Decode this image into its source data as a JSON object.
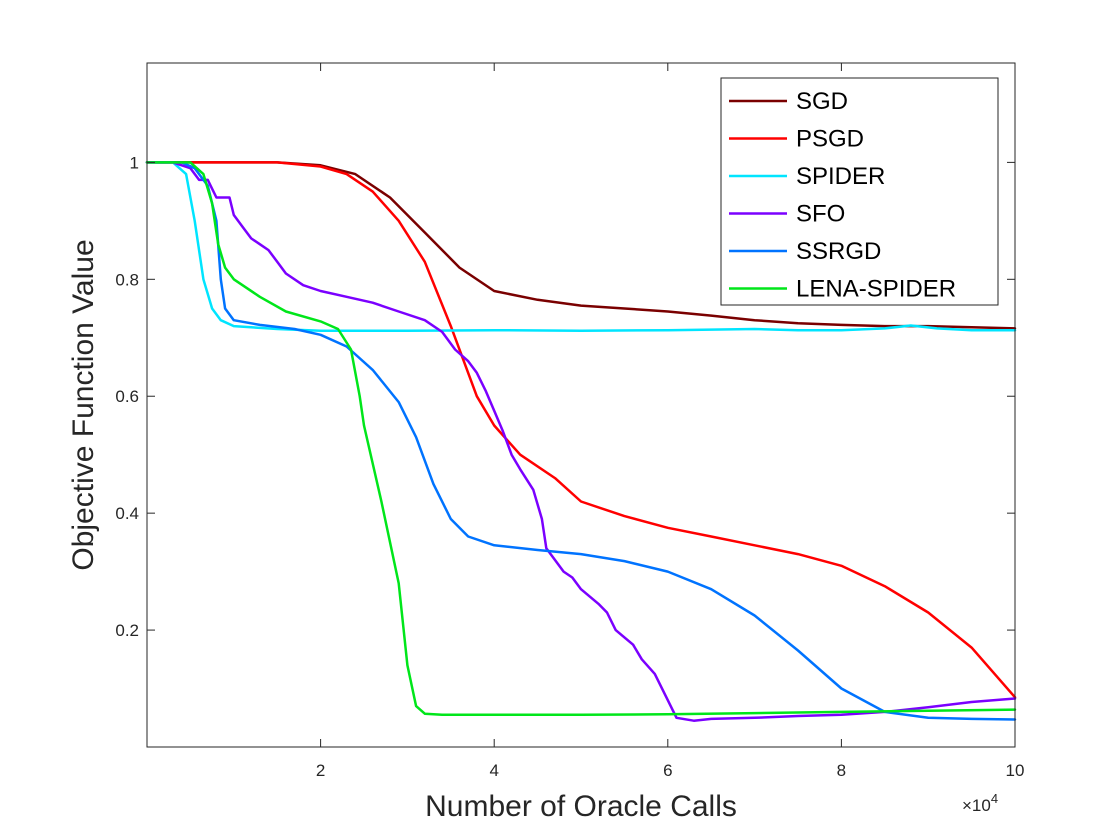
{
  "chart_data": {
    "type": "line",
    "title": "",
    "xlabel": "Number of Oracle Calls",
    "ylabel": "Objective Function Value",
    "x_multiplier_base": "×10",
    "x_multiplier_exp": "4",
    "xlim": [
      0,
      10
    ],
    "ylim": [
      0.0,
      1.17
    ],
    "xticks": [
      2,
      4,
      6,
      8,
      10
    ],
    "xtick_labels": [
      "2",
      "4",
      "6",
      "8",
      "10"
    ],
    "yticks": [
      0.2,
      0.4,
      0.6,
      0.8,
      1.0
    ],
    "ytick_labels": [
      "0.2",
      "0.4",
      "0.6",
      "0.8",
      "1"
    ],
    "grid": false,
    "legend_position": "top-right",
    "series": [
      {
        "name": "SGD",
        "color": "#7a0000",
        "points": [
          [
            0,
            1.0
          ],
          [
            1,
            1.0
          ],
          [
            1.5,
            1.0
          ],
          [
            2,
            0.995
          ],
          [
            2.4,
            0.98
          ],
          [
            2.8,
            0.94
          ],
          [
            3.2,
            0.88
          ],
          [
            3.6,
            0.82
          ],
          [
            4,
            0.78
          ],
          [
            4.5,
            0.765
          ],
          [
            5,
            0.755
          ],
          [
            5.5,
            0.75
          ],
          [
            6,
            0.745
          ],
          [
            6.5,
            0.738
          ],
          [
            7,
            0.73
          ],
          [
            7.5,
            0.725
          ],
          [
            8,
            0.722
          ],
          [
            8.5,
            0.72
          ],
          [
            9,
            0.72
          ],
          [
            9.5,
            0.718
          ],
          [
            10,
            0.716
          ]
        ]
      },
      {
        "name": "PSGD",
        "color": "#ff0000",
        "points": [
          [
            0,
            1.0
          ],
          [
            1,
            1.0
          ],
          [
            1.5,
            1.0
          ],
          [
            2,
            0.993
          ],
          [
            2.3,
            0.98
          ],
          [
            2.6,
            0.95
          ],
          [
            2.9,
            0.9
          ],
          [
            3.2,
            0.83
          ],
          [
            3.5,
            0.72
          ],
          [
            3.8,
            0.6
          ],
          [
            4,
            0.55
          ],
          [
            4.3,
            0.5
          ],
          [
            4.7,
            0.46
          ],
          [
            5,
            0.42
          ],
          [
            5.5,
            0.395
          ],
          [
            6,
            0.375
          ],
          [
            6.5,
            0.36
          ],
          [
            7,
            0.345
          ],
          [
            7.5,
            0.33
          ],
          [
            8,
            0.31
          ],
          [
            8.5,
            0.275
          ],
          [
            9,
            0.23
          ],
          [
            9.5,
            0.17
          ],
          [
            10,
            0.085
          ]
        ]
      },
      {
        "name": "SPIDER",
        "color": "#00e5ff",
        "points": [
          [
            0,
            1.0
          ],
          [
            0.3,
            1.0
          ],
          [
            0.45,
            0.98
          ],
          [
            0.55,
            0.9
          ],
          [
            0.65,
            0.8
          ],
          [
            0.75,
            0.75
          ],
          [
            0.85,
            0.73
          ],
          [
            1,
            0.72
          ],
          [
            1.5,
            0.715
          ],
          [
            2,
            0.712
          ],
          [
            3,
            0.712
          ],
          [
            4,
            0.713
          ],
          [
            5,
            0.712
          ],
          [
            6,
            0.713
          ],
          [
            7,
            0.715
          ],
          [
            7.5,
            0.713
          ],
          [
            8,
            0.713
          ],
          [
            8.5,
            0.716
          ],
          [
            8.8,
            0.721
          ],
          [
            9.1,
            0.716
          ],
          [
            9.5,
            0.713
          ],
          [
            10,
            0.713
          ]
        ]
      },
      {
        "name": "SFO",
        "color": "#7b00ff",
        "points": [
          [
            0,
            1.0
          ],
          [
            0.3,
            1.0
          ],
          [
            0.5,
            0.99
          ],
          [
            0.6,
            0.97
          ],
          [
            0.7,
            0.97
          ],
          [
            0.8,
            0.94
          ],
          [
            0.95,
            0.94
          ],
          [
            1,
            0.91
          ],
          [
            1.1,
            0.89
          ],
          [
            1.2,
            0.87
          ],
          [
            1.3,
            0.86
          ],
          [
            1.4,
            0.85
          ],
          [
            1.5,
            0.83
          ],
          [
            1.6,
            0.81
          ],
          [
            1.8,
            0.79
          ],
          [
            2,
            0.78
          ],
          [
            2.3,
            0.77
          ],
          [
            2.6,
            0.76
          ],
          [
            2.9,
            0.745
          ],
          [
            3.2,
            0.73
          ],
          [
            3.4,
            0.71
          ],
          [
            3.55,
            0.68
          ],
          [
            3.7,
            0.66
          ],
          [
            3.8,
            0.64
          ],
          [
            3.9,
            0.61
          ],
          [
            4,
            0.575
          ],
          [
            4.1,
            0.54
          ],
          [
            4.2,
            0.5
          ],
          [
            4.3,
            0.475
          ],
          [
            4.45,
            0.44
          ],
          [
            4.55,
            0.39
          ],
          [
            4.6,
            0.34
          ],
          [
            4.8,
            0.3
          ],
          [
            4.9,
            0.29
          ],
          [
            5,
            0.27
          ],
          [
            5.2,
            0.245
          ],
          [
            5.3,
            0.23
          ],
          [
            5.4,
            0.2
          ],
          [
            5.6,
            0.175
          ],
          [
            5.7,
            0.15
          ],
          [
            5.85,
            0.125
          ],
          [
            6,
            0.08
          ],
          [
            6.1,
            0.05
          ],
          [
            6.3,
            0.045
          ],
          [
            6.5,
            0.048
          ],
          [
            7,
            0.05
          ],
          [
            7.5,
            0.053
          ],
          [
            8,
            0.055
          ],
          [
            8.5,
            0.06
          ],
          [
            9,
            0.068
          ],
          [
            9.5,
            0.077
          ],
          [
            10,
            0.083
          ]
        ]
      },
      {
        "name": "SSRGD",
        "color": "#0073ff",
        "points": [
          [
            0,
            1.0
          ],
          [
            0.4,
            1.0
          ],
          [
            0.55,
            0.99
          ],
          [
            0.7,
            0.96
          ],
          [
            0.8,
            0.9
          ],
          [
            0.85,
            0.8
          ],
          [
            0.9,
            0.75
          ],
          [
            1,
            0.73
          ],
          [
            1.3,
            0.722
          ],
          [
            1.7,
            0.715
          ],
          [
            2,
            0.705
          ],
          [
            2.3,
            0.685
          ],
          [
            2.6,
            0.645
          ],
          [
            2.9,
            0.59
          ],
          [
            3.1,
            0.53
          ],
          [
            3.3,
            0.45
          ],
          [
            3.5,
            0.39
          ],
          [
            3.7,
            0.36
          ],
          [
            4,
            0.345
          ],
          [
            4.5,
            0.337
          ],
          [
            5,
            0.33
          ],
          [
            5.5,
            0.318
          ],
          [
            6,
            0.3
          ],
          [
            6.5,
            0.27
          ],
          [
            7,
            0.225
          ],
          [
            7.5,
            0.165
          ],
          [
            8,
            0.1
          ],
          [
            8.5,
            0.06
          ],
          [
            9,
            0.05
          ],
          [
            9.5,
            0.048
          ],
          [
            10,
            0.047
          ]
        ]
      },
      {
        "name": "LENA-SPIDER",
        "color": "#00e61a",
        "points": [
          [
            0,
            1.0
          ],
          [
            0.5,
            1.0
          ],
          [
            0.65,
            0.98
          ],
          [
            0.75,
            0.93
          ],
          [
            0.82,
            0.86
          ],
          [
            0.9,
            0.82
          ],
          [
            1,
            0.8
          ],
          [
            1.3,
            0.77
          ],
          [
            1.6,
            0.745
          ],
          [
            2,
            0.728
          ],
          [
            2.2,
            0.715
          ],
          [
            2.35,
            0.68
          ],
          [
            2.45,
            0.6
          ],
          [
            2.5,
            0.55
          ],
          [
            2.7,
            0.42
          ],
          [
            2.9,
            0.28
          ],
          [
            3,
            0.14
          ],
          [
            3.1,
            0.07
          ],
          [
            3.2,
            0.057
          ],
          [
            3.4,
            0.055
          ],
          [
            4,
            0.055
          ],
          [
            5,
            0.055
          ],
          [
            6,
            0.056
          ],
          [
            7,
            0.058
          ],
          [
            8,
            0.06
          ],
          [
            9,
            0.062
          ],
          [
            10,
            0.064
          ]
        ]
      }
    ]
  }
}
